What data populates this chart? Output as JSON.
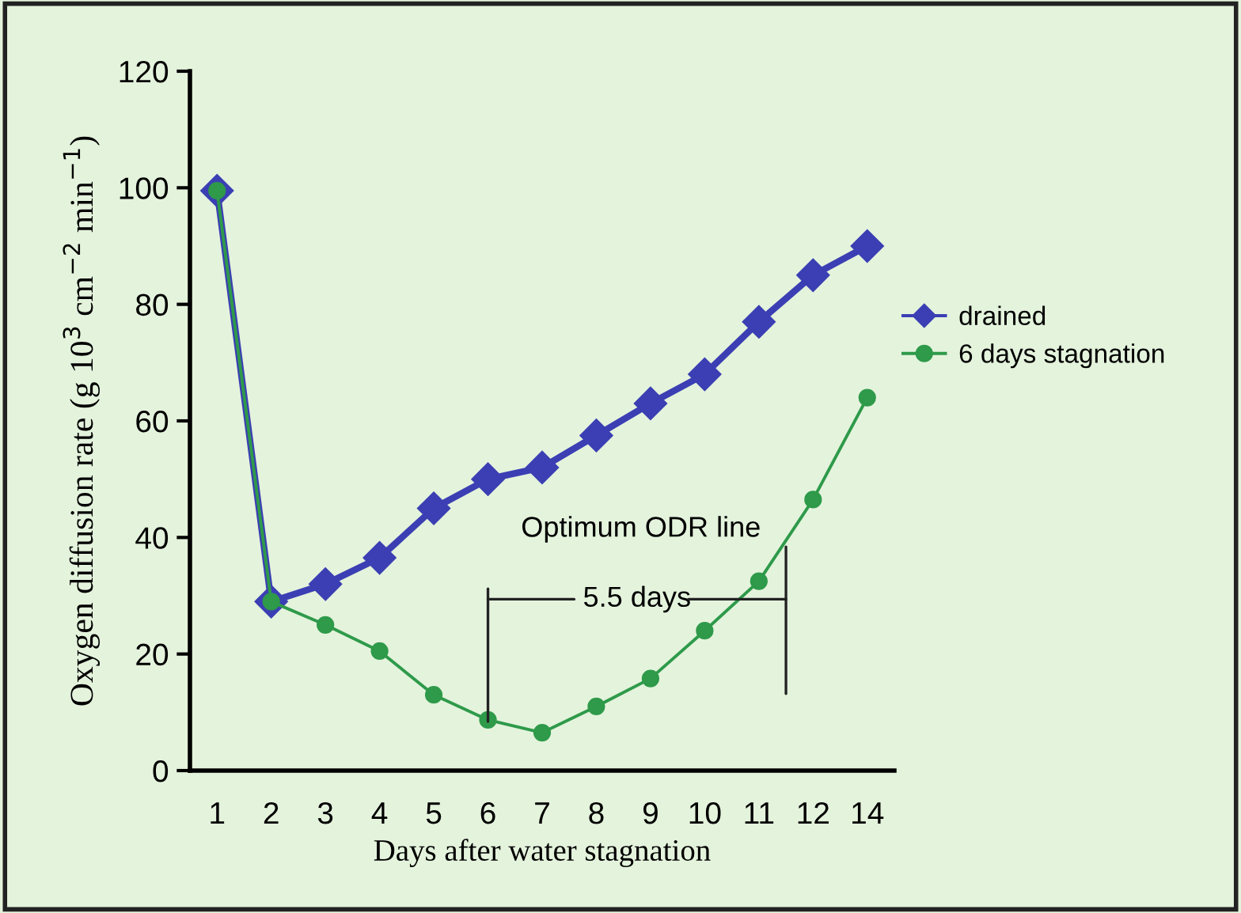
{
  "chart_data": {
    "type": "line",
    "xlabel": "Days after water stagnation",
    "ylabel": "Oxygen diffusion rate (g 10$^{3}$ cm$^{−2}$ min$^{−1}$)",
    "categories": [
      "1",
      "2",
      "3",
      "4",
      "5",
      "6",
      "7",
      "8",
      "9",
      "10",
      "11",
      "12",
      "14"
    ],
    "series": [
      {
        "name": "drained",
        "color": "#3b3fb3",
        "marker": "diamond",
        "values": [
          99.5,
          29,
          32,
          36.5,
          45,
          50,
          52,
          57.5,
          63,
          68,
          77,
          85,
          90
        ]
      },
      {
        "name": "6 days stagnation",
        "color": "#2e9a4a",
        "marker": "circle",
        "values": [
          99.5,
          29,
          25,
          20.5,
          13,
          8.7,
          6.5,
          11,
          15.8,
          24,
          32.5,
          46.5,
          64
        ]
      }
    ],
    "ylim": [
      0,
      120
    ],
    "yticks": [
      0,
      20,
      40,
      60,
      80,
      100,
      120
    ],
    "annotations": [
      "Optimum ODR line",
      "5.5 days"
    ],
    "legend": "right",
    "grid": false
  }
}
